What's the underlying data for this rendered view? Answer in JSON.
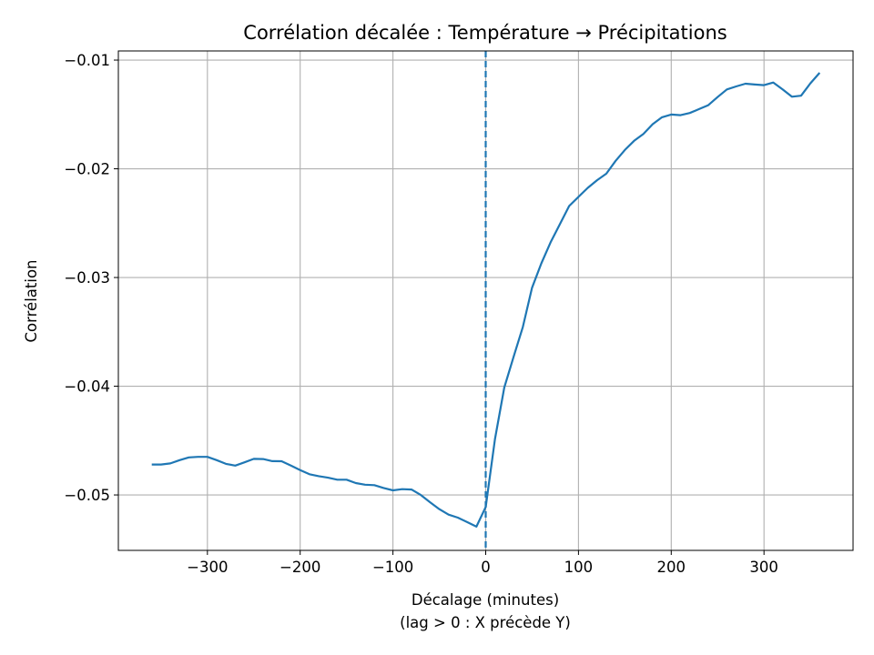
{
  "chart_data": {
    "type": "line",
    "title": "Corrélation décalée : Température → Précipitations",
    "xlabel": "Décalage (minutes)",
    "xlabel_line2": "(lag > 0 : X précède Y)",
    "ylabel": "Corrélation",
    "xlim": [
      -396,
      396
    ],
    "ylim": [
      -0.0551,
      -0.00916
    ],
    "grid": true,
    "xticks": [
      -300,
      -200,
      -100,
      0,
      100,
      200,
      300
    ],
    "xtick_labels": [
      "−300",
      "−200",
      "−100",
      "0",
      "100",
      "200",
      "300"
    ],
    "yticks": [
      -0.01,
      -0.02,
      -0.03,
      -0.04,
      -0.05
    ],
    "ytick_labels": [
      "−0.01",
      "−0.02",
      "−0.03",
      "−0.04",
      "−0.05"
    ],
    "line_color": "#1f77b4",
    "reference_line": {
      "x": 0,
      "style": "dashed",
      "color": "#1f77b4"
    },
    "x": [
      -360,
      -350,
      -340,
      -330,
      -320,
      -310,
      -300,
      -290,
      -280,
      -270,
      -260,
      -250,
      -240,
      -230,
      -220,
      -210,
      -200,
      -190,
      -180,
      -170,
      -160,
      -150,
      -140,
      -130,
      -120,
      -110,
      -100,
      -90,
      -80,
      -70,
      -60,
      -50,
      -40,
      -30,
      -20,
      -10,
      0,
      10,
      20,
      30,
      40,
      50,
      60,
      70,
      80,
      90,
      100,
      110,
      120,
      130,
      140,
      150,
      160,
      170,
      180,
      190,
      200,
      210,
      220,
      230,
      240,
      250,
      260,
      270,
      280,
      290,
      300,
      310,
      320,
      330,
      340,
      350,
      360
    ],
    "y": [
      -0.0472,
      -0.0472,
      -0.0471,
      -0.0468,
      -0.04655,
      -0.0465,
      -0.0465,
      -0.0468,
      -0.04714,
      -0.0473,
      -0.047,
      -0.04668,
      -0.0467,
      -0.04689,
      -0.0469,
      -0.0473,
      -0.04772,
      -0.0481,
      -0.04827,
      -0.04841,
      -0.0486,
      -0.0486,
      -0.04891,
      -0.04906,
      -0.0491,
      -0.04936,
      -0.04958,
      -0.04947,
      -0.0495,
      -0.05,
      -0.05067,
      -0.05131,
      -0.05181,
      -0.05209,
      -0.0525,
      -0.05292,
      -0.05111,
      -0.04485,
      -0.04012,
      -0.0373,
      -0.03455,
      -0.03094,
      -0.0287,
      -0.02676,
      -0.02509,
      -0.02342,
      -0.02258,
      -0.02175,
      -0.02105,
      -0.02045,
      -0.01927,
      -0.01827,
      -0.01743,
      -0.01679,
      -0.0159,
      -0.01526,
      -0.01501,
      -0.01507,
      -0.01487,
      -0.01451,
      -0.01415,
      -0.0134,
      -0.0127,
      -0.01242,
      -0.01217,
      -0.01225,
      -0.01231,
      -0.01206,
      -0.0127,
      -0.01337,
      -0.01328,
      -0.01214,
      -0.01117
    ]
  }
}
